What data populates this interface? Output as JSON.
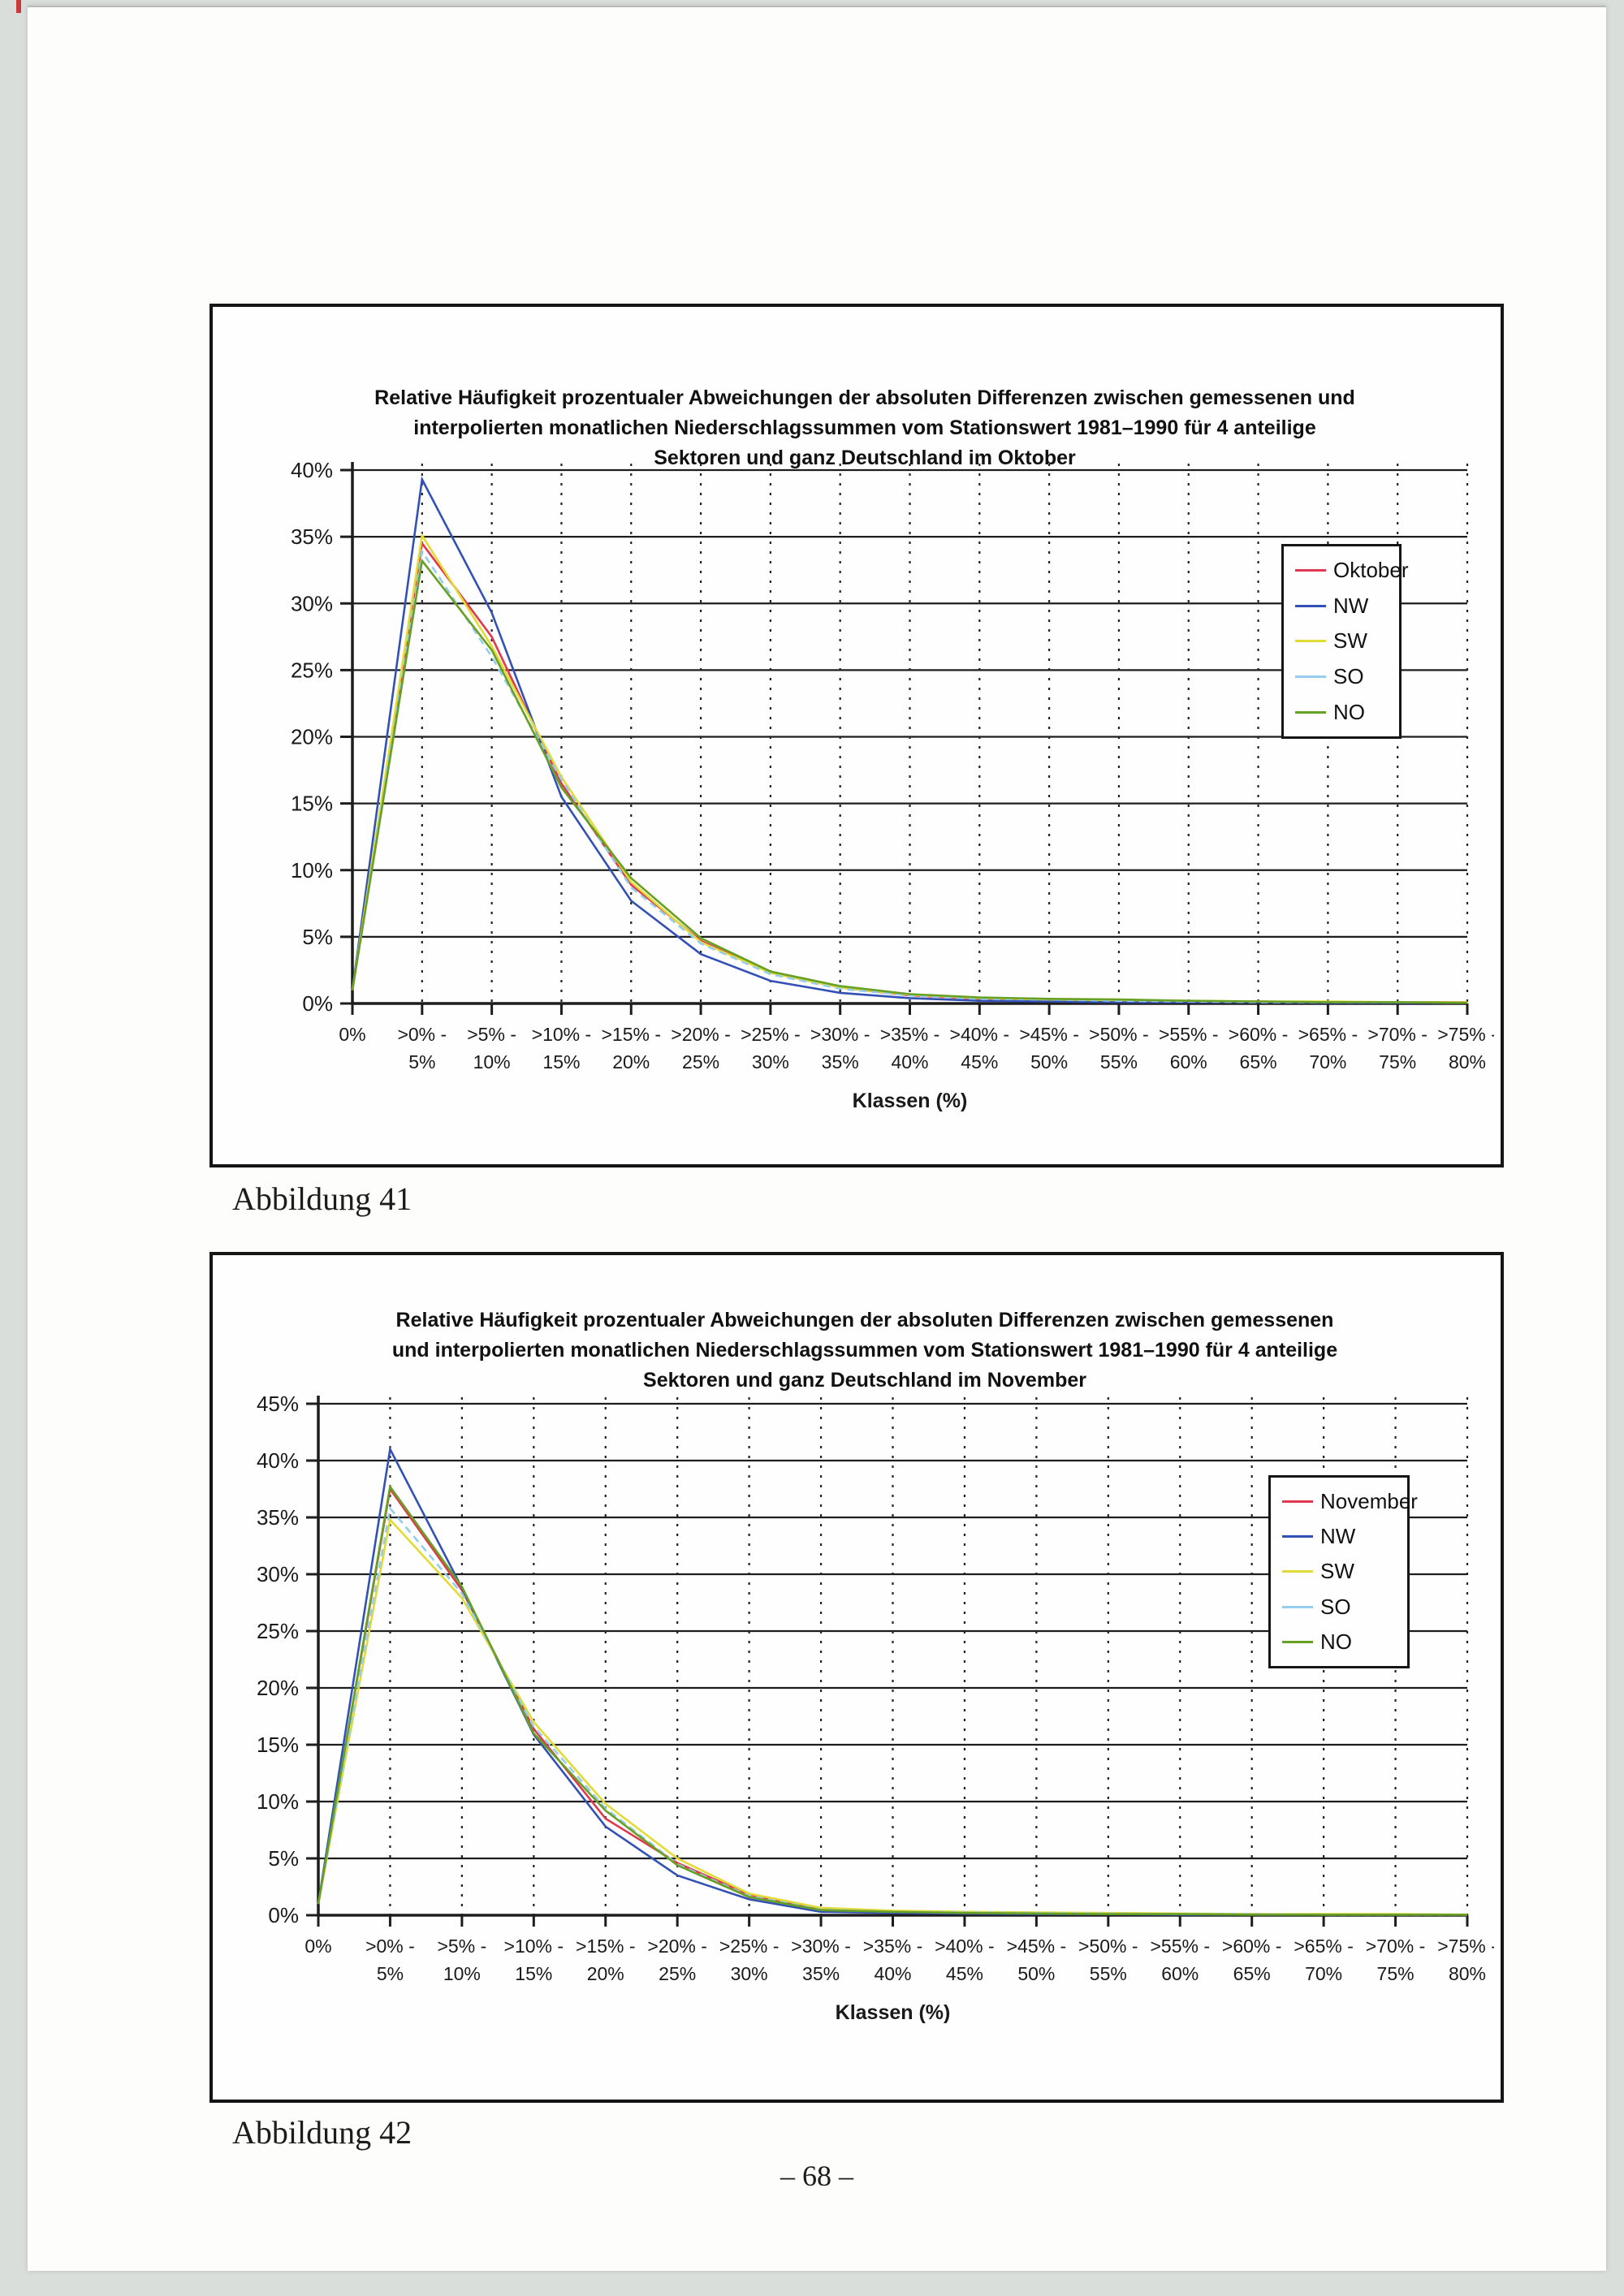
{
  "page": {
    "caption_figure_1": "Abbildung 41",
    "caption_figure_2": "Abbildung 42",
    "page_number": "– 68 –"
  },
  "chart_data": [
    {
      "type": "line",
      "title": "Relative Häufigkeit prozentualer Abweichungen der absoluten Differenzen zwischen gemessenen und interpolierten monatlichen Niederschlagssummen vom Stationswert 1981–1990 für 4 anteilige Sektoren und ganz Deutschland im Oktober",
      "title_lines": [
        "Relative Häufigkeit prozentualer Abweichungen der absoluten Differenzen zwischen gemessenen und",
        "interpolierten monatlichen Niederschlagssummen vom Stationswert 1981–1990 für 4 anteilige",
        "Sektoren und ganz Deutschland im Oktober"
      ],
      "xlabel": "Klassen (%)",
      "ylabel": "",
      "ylim": [
        0,
        40
      ],
      "ytick_step": 5,
      "ytick_labels": [
        "0%",
        "5%",
        "10%",
        "15%",
        "20%",
        "25%",
        "30%",
        "35%",
        "40%"
      ],
      "grid": "horizontal solid, vertical dotted",
      "legend_position": "inside-right",
      "categories": [
        "0%",
        ">0% - 5%",
        ">5% - 10%",
        ">10% - 15%",
        ">15% - 20%",
        ">20% - 25%",
        ">25% - 30%",
        ">30% - 35%",
        ">35% - 40%",
        ">40% - 45%",
        ">45% - 50%",
        ">50% - 55%",
        ">55% - 60%",
        ">60% - 65%",
        ">65% - 70%",
        ">70% - 75%",
        ">75% - 80%"
      ],
      "series": [
        {
          "name": "Oktober",
          "color": "#e0394f",
          "dashed": false,
          "values": [
            1.0,
            34.5,
            27.5,
            16.5,
            8.9,
            4.7,
            2.3,
            1.2,
            0.6,
            0.35,
            0.3,
            0.2,
            0.15,
            0.15,
            0.1,
            0.1,
            0.1
          ]
        },
        {
          "name": "NW",
          "color": "#3351b5",
          "dashed": false,
          "values": [
            1.0,
            39.3,
            29.3,
            15.5,
            7.7,
            3.7,
            1.7,
            0.8,
            0.4,
            0.2,
            0.15,
            0.1,
            0.1,
            0.1,
            0.05,
            0.05,
            0.05
          ]
        },
        {
          "name": "SW",
          "color": "#e3db35",
          "dashed": false,
          "values": [
            1.0,
            35.1,
            26.8,
            17.0,
            9.1,
            4.6,
            2.3,
            1.2,
            0.65,
            0.4,
            0.3,
            0.25,
            0.2,
            0.15,
            0.15,
            0.1,
            0.1
          ]
        },
        {
          "name": "SO",
          "color": "#96cdec",
          "dashed": true,
          "values": [
            1.0,
            33.9,
            26.0,
            16.8,
            8.7,
            4.5,
            2.2,
            1.1,
            0.6,
            0.35,
            0.3,
            0.2,
            0.15,
            0.1,
            0.1,
            0.1,
            0.05
          ]
        },
        {
          "name": "NO",
          "color": "#67a022",
          "dashed": false,
          "values": [
            1.0,
            33.2,
            26.5,
            16.2,
            9.4,
            4.9,
            2.4,
            1.3,
            0.7,
            0.45,
            0.35,
            0.3,
            0.2,
            0.15,
            0.1,
            0.1,
            0.05
          ]
        }
      ]
    },
    {
      "type": "line",
      "title": "Relative Häufigkeit prozentualer Abweichungen der absoluten Differenzen zwischen gemessenen und interpolierten monatlichen Niederschlagssummen vom Stationswert 1981–1990 für 4 anteilige Sektoren und ganz Deutschland im November",
      "title_lines": [
        "Relative Häufigkeit prozentualer Abweichungen der absoluten Differenzen zwischen gemessenen",
        "und interpolierten monatlichen Niederschlagssummen vom Stationswert 1981–1990 für 4 anteilige",
        "Sektoren und ganz Deutschland im November"
      ],
      "xlabel": "Klassen (%)",
      "ylabel": "",
      "ylim": [
        0,
        45
      ],
      "ytick_step": 5,
      "ytick_labels": [
        "0%",
        "5%",
        "10%",
        "15%",
        "20%",
        "25%",
        "30%",
        "35%",
        "40%",
        "45%"
      ],
      "grid": "horizontal solid, vertical dotted",
      "legend_position": "inside-right",
      "categories": [
        "0%",
        ">0% - 5%",
        ">5% - 10%",
        ">10% - 15%",
        ">15% - 20%",
        ">20% - 25%",
        ">25% - 30%",
        ">30% - 35%",
        ">35% - 40%",
        ">40% - 45%",
        ">45% - 50%",
        ">50% - 55%",
        ">55% - 60%",
        ">60% - 65%",
        ">65% - 70%",
        ">70% - 75%",
        ">75% - 80%"
      ],
      "series": [
        {
          "name": "November",
          "color": "#e0394f",
          "dashed": false,
          "values": [
            1.0,
            37.5,
            28.6,
            16.4,
            8.5,
            4.6,
            1.8,
            0.55,
            0.3,
            0.2,
            0.15,
            0.1,
            0.1,
            0.1,
            0.05,
            0.05,
            0.05
          ]
        },
        {
          "name": "NW",
          "color": "#3351b5",
          "dashed": false,
          "values": [
            1.0,
            41.0,
            28.8,
            15.9,
            7.8,
            3.5,
            1.4,
            0.3,
            0.2,
            0.15,
            0.1,
            0.1,
            0.05,
            0.05,
            0.05,
            0.05,
            0.05
          ]
        },
        {
          "name": "SW",
          "color": "#e3db35",
          "dashed": false,
          "values": [
            1.0,
            34.8,
            27.9,
            17.0,
            9.8,
            5.0,
            1.9,
            0.65,
            0.4,
            0.3,
            0.25,
            0.2,
            0.15,
            0.1,
            0.1,
            0.1,
            0.05
          ]
        },
        {
          "name": "SO",
          "color": "#96cdec",
          "dashed": true,
          "values": [
            1.0,
            35.8,
            28.3,
            16.6,
            9.4,
            4.5,
            1.7,
            0.5,
            0.3,
            0.25,
            0.2,
            0.15,
            0.1,
            0.1,
            0.05,
            0.05,
            0.05
          ]
        },
        {
          "name": "NO",
          "color": "#67a022",
          "dashed": false,
          "values": [
            1.0,
            37.7,
            28.9,
            16.0,
            9.2,
            4.4,
            1.6,
            0.45,
            0.3,
            0.2,
            0.15,
            0.1,
            0.1,
            0.05,
            0.05,
            0.05,
            0.05
          ]
        }
      ]
    }
  ]
}
